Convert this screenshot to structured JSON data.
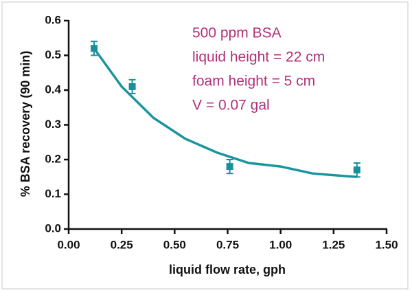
{
  "chart_data": {
    "type": "scatter",
    "x_label": "liquid flow rate, gph",
    "y_label": "% BSA recovery (90 min)",
    "annotations": [
      "500 ppm BSA",
      "liquid height = 22 cm",
      "foam height = 5 cm",
      "V = 0.07 gal"
    ],
    "annotation_color": "#b0307a",
    "points": {
      "x": [
        0.12,
        0.3,
        0.76,
        1.36
      ],
      "values": [
        0.52,
        0.41,
        0.18,
        0.17
      ],
      "errors": [
        0.02,
        0.02,
        0.02,
        0.02
      ],
      "color": "#1a8f9c"
    },
    "fit": {
      "x": [
        0.12,
        0.25,
        0.4,
        0.55,
        0.7,
        0.85,
        1.0,
        1.15,
        1.36
      ],
      "values": [
        0.52,
        0.41,
        0.32,
        0.26,
        0.22,
        0.19,
        0.18,
        0.16,
        0.15
      ],
      "color": "#1a94a0"
    },
    "xlim": [
      0,
      1.5
    ],
    "ylim": [
      0,
      0.6
    ],
    "xticks": [
      {
        "value": 0,
        "label": "0.00"
      },
      {
        "value": 0.25,
        "label": "0.25"
      },
      {
        "value": 0.5,
        "label": "0.50"
      },
      {
        "value": 0.75,
        "label": "0.75"
      },
      {
        "value": 1,
        "label": "1.00"
      },
      {
        "value": 1.25,
        "label": "1.25"
      },
      {
        "value": 1.5,
        "label": "1.50"
      }
    ],
    "yticks": [
      {
        "value": 0,
        "label": "0.0"
      },
      {
        "value": 0.1,
        "label": "0.1"
      },
      {
        "value": 0.2,
        "label": "0.2"
      },
      {
        "value": 0.3,
        "label": "0.3"
      },
      {
        "value": 0.4,
        "label": "0.4"
      },
      {
        "value": 0.5,
        "label": "0.5"
      },
      {
        "value": 0.6,
        "label": "0.6"
      }
    ]
  }
}
